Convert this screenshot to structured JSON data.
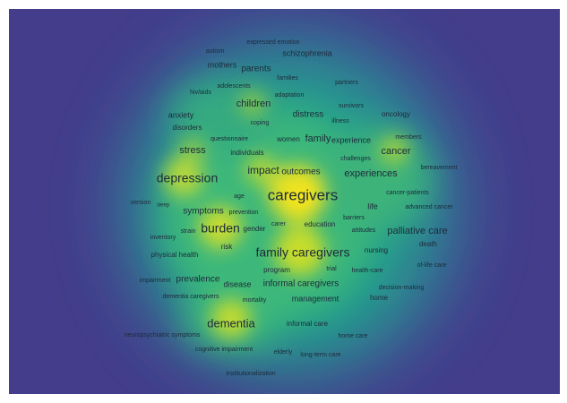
{
  "terms": [
    "expressed emotion",
    "autism",
    "schizophrenia",
    "mothers",
    "parents",
    "families",
    "partners",
    "adolescents",
    "hiv/aids",
    "adaptation",
    "children",
    "survivors",
    "anxiety",
    "coping",
    "distress",
    "illness",
    "oncology",
    "disorders",
    "questionnaire",
    "women",
    "family",
    "experience",
    "members",
    "stress",
    "individuals",
    "challenges",
    "cancer",
    "bereavement",
    "depression",
    "impact",
    "outcomes",
    "experiences",
    "age",
    "caregivers",
    "cancer-patients",
    "version",
    "sleep",
    "symptoms",
    "prevention",
    "life",
    "advanced cancer",
    "barriers",
    "carer",
    "education",
    "burden",
    "gender",
    "strain",
    "attitudes",
    "palliative care",
    "inventory",
    "death",
    "risk",
    "family caregivers",
    "physical health",
    "nursing",
    "of-life care",
    "trial",
    "health-care",
    "program",
    "impairment",
    "prevalence",
    "disease",
    "informal caregivers",
    "decision-making",
    "dementia caregivers",
    "mortality",
    "management",
    "home",
    "dementia",
    "informal care",
    "neuropsychiatric symptoms",
    "home care",
    "cognitive impairment",
    "elderly",
    "long-term care",
    "institutionalization"
  ]
}
